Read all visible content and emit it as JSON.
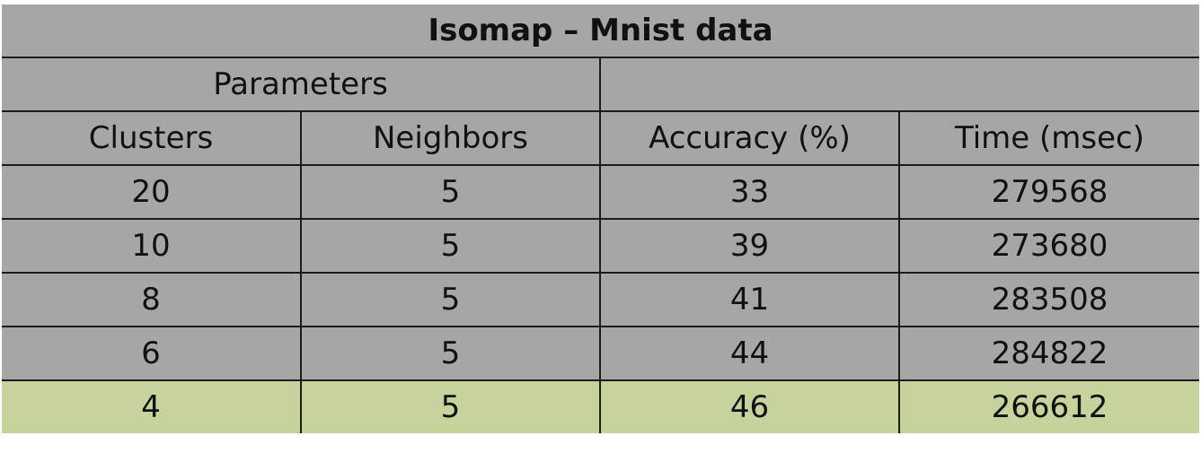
{
  "chart_data": {
    "type": "table",
    "title": "Isomap – Mnist data",
    "group_header": "Parameters",
    "columns": [
      "Clusters",
      "Neighbors",
      "Accuracy (%)",
      "Time (msec)"
    ],
    "rows": [
      [
        "20",
        "5",
        "33",
        "279568"
      ],
      [
        "10",
        "5",
        "39",
        "273680"
      ],
      [
        "8",
        "5",
        "41",
        "283508"
      ],
      [
        "6",
        "5",
        "44",
        "284822"
      ],
      [
        "4",
        "5",
        "46",
        "266612"
      ]
    ],
    "highlight_row": 4,
    "colors": {
      "cell_background": "#a6a6a6",
      "highlight_background": "#c4d49c",
      "border": "#1c1c1c"
    }
  }
}
